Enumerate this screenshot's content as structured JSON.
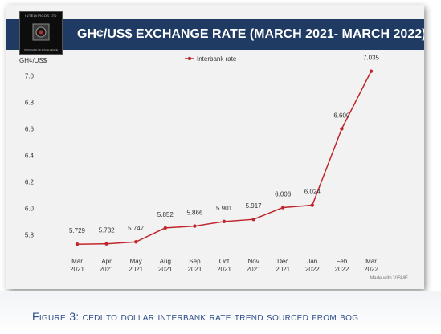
{
  "header": {
    "title": "GH¢/US$ EXCHANGE RATE  (MARCH 2021- MARCH 2022)",
    "logo_top_text": "INTELVIRGOS LTD",
    "logo_bottom_text": "STANDARD OF EXCELLENCE"
  },
  "footer": {
    "made_with": "Made with VISME"
  },
  "caption": "Figure 3: cedi to dollar interbank rate trend sourced from bog",
  "colors": {
    "line": "#c0272d",
    "banner": "#1f3a63",
    "caption": "#2f4d8a"
  },
  "chart_data": {
    "type": "line",
    "title": "GH¢/US$ EXCHANGE RATE  (MARCH 2021- MARCH 2022)",
    "ylabel": "GH¢/US$",
    "xlabel": "",
    "categories": [
      [
        "Mar",
        "2021"
      ],
      [
        "Apr",
        "2021"
      ],
      [
        "May",
        "2021"
      ],
      [
        "Aug",
        "2021"
      ],
      [
        "Sep",
        "2021"
      ],
      [
        "Oct",
        "2021"
      ],
      [
        "Nov",
        "2021"
      ],
      [
        "Dec",
        "2021"
      ],
      [
        "Jan",
        "2022"
      ],
      [
        "Feb",
        "2022"
      ],
      [
        "Mar",
        "2022"
      ]
    ],
    "series": [
      {
        "name": "Interbank rate",
        "values": [
          5.729,
          5.732,
          5.747,
          5.852,
          5.866,
          5.901,
          5.917,
          6.006,
          6.024,
          6.6,
          7.035
        ],
        "labels": [
          "5.729",
          "5.732",
          "5.747",
          "5.852",
          "5.866",
          "5.901",
          "5.917",
          "6.006",
          "6.024",
          "6.600",
          "7.035"
        ]
      }
    ],
    "ylim": [
      5.7,
      7.1
    ],
    "yticks": [
      "5.8",
      "6.0",
      "6.2",
      "6.4",
      "6.6",
      "6.8",
      "7.0"
    ],
    "grid": false,
    "legend": "top-center"
  }
}
